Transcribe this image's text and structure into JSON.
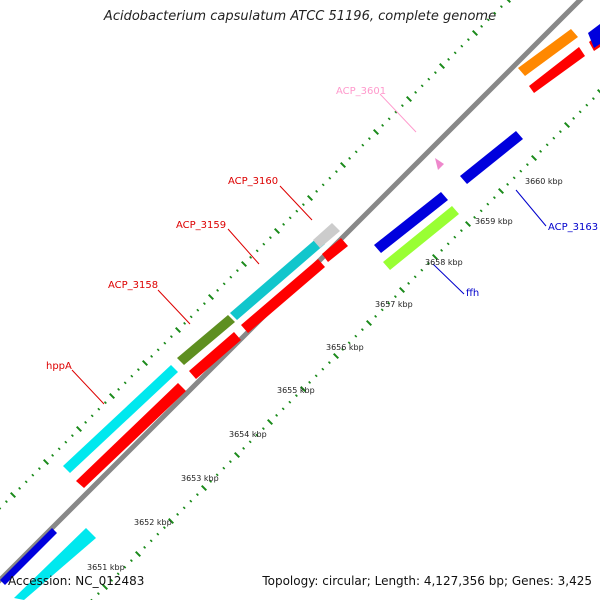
{
  "title": "Acidobacterium capsulatum ATCC 51196, complete genome",
  "footer": {
    "accession_label": "Accession:",
    "accession": "NC_012483",
    "topology_label": "Topology:",
    "topology": "circular",
    "length_label": "Length:",
    "length": "4,127,356 bp",
    "genes_label": "Genes:",
    "genes": "3,425"
  },
  "scale_labels": [
    "3651 kbp",
    "3652 kbp",
    "3653 kbp",
    "3654 kbp",
    "3655 kbp",
    "3656 kbp",
    "3657 kbp",
    "3658 kbp",
    "3659 kbp",
    "3660 kbp"
  ],
  "genes": [
    {
      "label": "ACP_3601",
      "color": "#ff99cc"
    },
    {
      "label": "ACP_3160",
      "color": "#dd0000"
    },
    {
      "label": "ACP_3159",
      "color": "#dd0000"
    },
    {
      "label": "ACP_3158",
      "color": "#dd0000"
    },
    {
      "label": "hppA",
      "color": "#dd0000"
    },
    {
      "label": "ACP_3163",
      "color": "#0000cc"
    },
    {
      "label": "ffh",
      "color": "#0000cc"
    }
  ],
  "colors": {
    "backbone": "#888888",
    "tick": "#1a8a1a",
    "red_feature": "#ff0000",
    "cyan_feature": "#00e0e8",
    "olive_feature": "#5a8a1e",
    "gray_feature": "#c8c8c8",
    "orange_feature": "#ff8800",
    "blue_feature": "#0000dd",
    "lime_feature": "#99ff33"
  }
}
